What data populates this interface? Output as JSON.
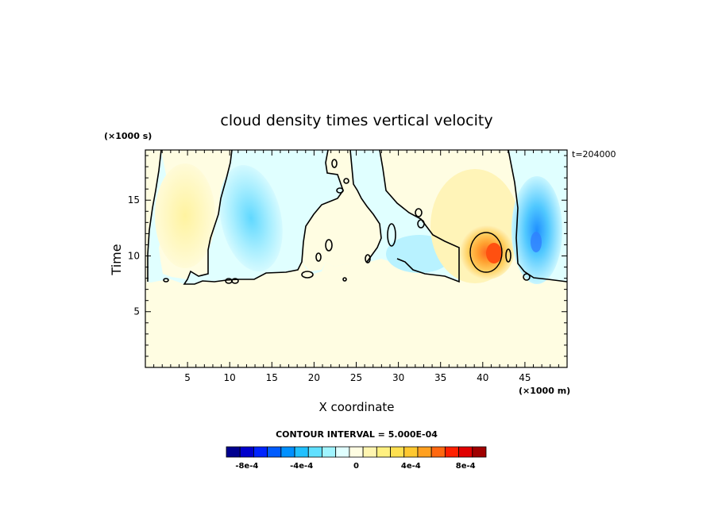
{
  "chart_data": {
    "type": "heatmap",
    "title": "cloud density times vertical velocity",
    "xlabel": "X coordinate",
    "ylabel": "Time",
    "x_unit": "(×1000 m)",
    "y_unit": "(×1000 s)",
    "timestamp": "t=204000",
    "xlim": [
      0,
      50
    ],
    "ylim": [
      0,
      19.5
    ],
    "x_ticks": [
      5,
      10,
      15,
      20,
      25,
      30,
      35,
      40,
      45
    ],
    "y_ticks": [
      5,
      10,
      15
    ],
    "contour_interval_text": "CONTOUR INTERVAL = 5.000E-04",
    "colorbar": {
      "labels": [
        "-8e-4",
        "-4e-4",
        "0",
        "4e-4",
        "8e-4"
      ],
      "colors": [
        "#00008f",
        "#0000cc",
        "#0024ff",
        "#005cff",
        "#0090ff",
        "#20c0ff",
        "#60e0ff",
        "#a0f4ff",
        "#e0ffff",
        "#fffde2",
        "#fff5b0",
        "#fff080",
        "#ffe050",
        "#ffc830",
        "#ffa020",
        "#ff6810",
        "#ff2000",
        "#e00000",
        "#a00000"
      ]
    },
    "grid": false
  }
}
